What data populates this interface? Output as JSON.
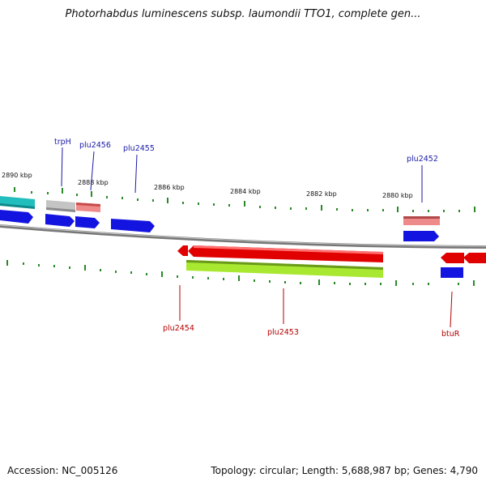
{
  "title": "Photorhabdus luminescens subsp. laumondii TTO1, complete gen...",
  "footer": {
    "accession": "Accession: NC_005126",
    "info": "Topology: circular; Length: 5,688,987 bp; Genes: 4,790"
  },
  "colors": {
    "forward_label": "#1a1aa8",
    "reverse_label": "#b40000",
    "tick": "#2a8a2a",
    "backbone": "#8a8a8a",
    "gene_blue": "#1414e0",
    "gene_red": "#e00000",
    "gene_pink": "#ee8080",
    "gene_grey": "#bdbdbd",
    "gene_cyan": "#22bdbd",
    "gene_green": "#a8e830"
  },
  "kbp_labels": [
    "2890 kbp",
    "2888 kbp",
    "2886 kbp",
    "2884 kbp",
    "2882 kbp",
    "2880 kbp"
  ],
  "gene_labels_forward": [
    "trpH",
    "plu2456",
    "plu2455",
    "plu2452"
  ],
  "gene_labels_reverse": [
    "plu2454",
    "plu2453",
    "btuR"
  ]
}
